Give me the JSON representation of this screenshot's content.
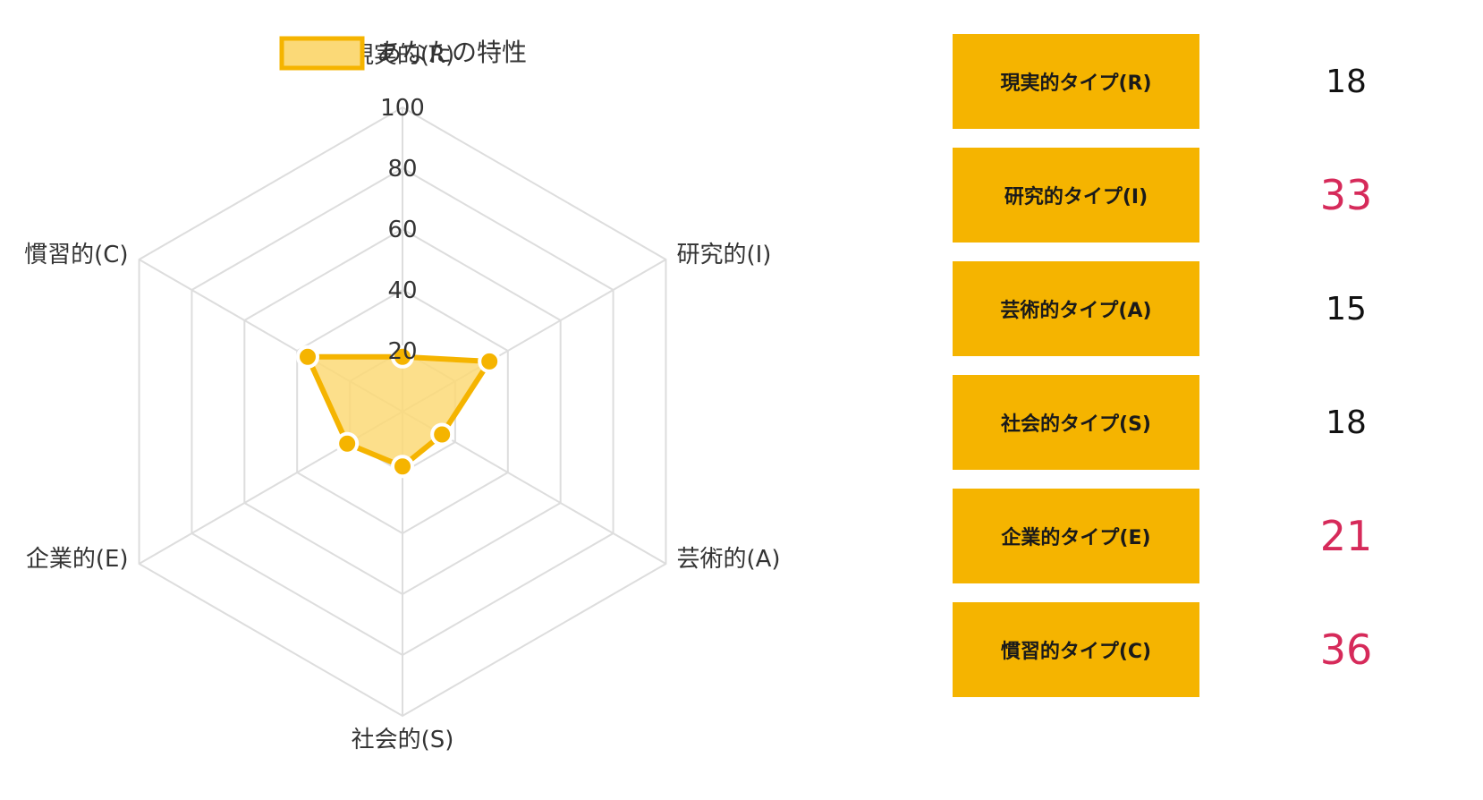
{
  "chart_data": {
    "type": "radar",
    "legend": {
      "label": "あなたの特性",
      "position": "top"
    },
    "axes": [
      "現実的(R)",
      "研究的(I)",
      "芸術的(A)",
      "社会的(S)",
      "企業的(E)",
      "慣習的(C)"
    ],
    "series": [
      {
        "name": "あなたの特性",
        "values": [
          18,
          33,
          15,
          18,
          21,
          36
        ],
        "line_color": "#f5b400",
        "fill_color": "#fbd977"
      }
    ],
    "ticks": [
      "20",
      "40",
      "60",
      "80",
      "100"
    ],
    "range": [
      0,
      100
    ],
    "grid": true
  },
  "scores": [
    {
      "label": "現実的タイプ(R)",
      "value": "18",
      "highlight": false
    },
    {
      "label": "研究的タイプ(I)",
      "value": "33",
      "highlight": true
    },
    {
      "label": "芸術的タイプ(A)",
      "value": "15",
      "highlight": false
    },
    {
      "label": "社会的タイプ(S)",
      "value": "18",
      "highlight": false
    },
    {
      "label": "企業的タイプ(E)",
      "value": "21",
      "highlight": true
    },
    {
      "label": "慣習的タイプ(C)",
      "value": "36",
      "highlight": true
    }
  ],
  "colors": {
    "accent": "#f5b400",
    "highlight_text": "#d62a5a",
    "grid": "#dddddd"
  }
}
